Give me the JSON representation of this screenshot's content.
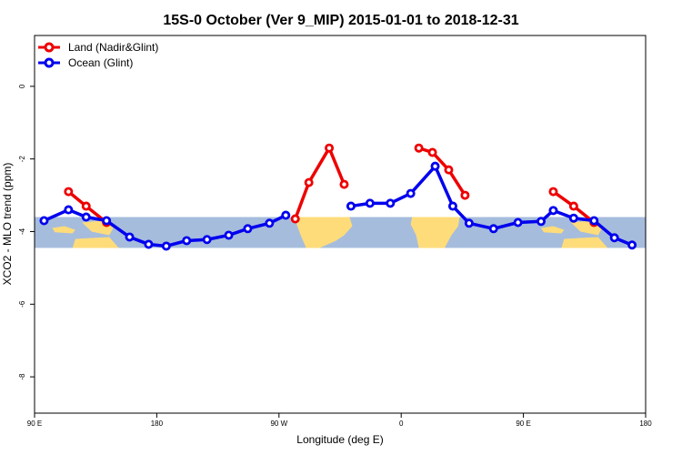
{
  "chart_data": {
    "type": "line",
    "title": "15S-0 October (Ver 9_MIP)   2015-01-01 to 2018-12-31",
    "xlabel": "Longitude (deg E)",
    "ylabel": "XCO2 - MLO trend (ppm)",
    "xlim": [
      90,
      540
    ],
    "ylim": [
      -9,
      1.4
    ],
    "x_ticks": [
      {
        "value": 90,
        "label": "90 E"
      },
      {
        "value": 180,
        "label": "180"
      },
      {
        "value": 270,
        "label": "90 W"
      },
      {
        "value": 360,
        "label": "0"
      },
      {
        "value": 450,
        "label": "90 E"
      },
      {
        "value": 540,
        "label": "180"
      }
    ],
    "y_ticks": [
      {
        "value": 0,
        "label": "0"
      },
      {
        "value": -2,
        "label": "-2"
      },
      {
        "value": -4,
        "label": "-4"
      },
      {
        "value": -6,
        "label": "-6"
      },
      {
        "value": -8,
        "label": "-8"
      }
    ],
    "legend_position": "top-left",
    "grid": false,
    "map_band": {
      "y_range": [
        -4.45,
        -3.6
      ],
      "ocean_color": "#a5bcdc",
      "land_color": "#fedc7a"
    },
    "series": [
      {
        "name": "Land (Nadir&Glint)",
        "color": "#ee0000",
        "segments": [
          [
            [
              115,
              -2.9
            ],
            [
              128,
              -3.3
            ],
            [
              143,
              -3.75
            ]
          ],
          [
            [
              282,
              -3.65
            ],
            [
              292,
              -2.65
            ],
            [
              307,
              -1.7
            ],
            [
              318,
              -2.7
            ]
          ],
          [
            [
              373,
              -1.7
            ],
            [
              383,
              -1.82
            ],
            [
              395,
              -2.3
            ],
            [
              407,
              -3.0
            ]
          ],
          [
            [
              472,
              -2.9
            ],
            [
              487,
              -3.3
            ],
            [
              502,
              -3.75
            ]
          ]
        ]
      },
      {
        "name": "Ocean (Glint)",
        "color": "#0000ee",
        "segments": [
          [
            [
              97,
              -3.7
            ],
            [
              115,
              -3.4
            ],
            [
              128,
              -3.6
            ],
            [
              143,
              -3.7
            ],
            [
              160,
              -4.15
            ],
            [
              174,
              -4.35
            ],
            [
              187,
              -4.4
            ],
            [
              202,
              -4.25
            ],
            [
              217,
              -4.22
            ],
            [
              233,
              -4.1
            ],
            [
              247,
              -3.92
            ],
            [
              263,
              -3.77
            ],
            [
              275,
              -3.55
            ]
          ],
          [
            [
              323,
              -3.3
            ],
            [
              337,
              -3.22
            ],
            [
              352,
              -3.22
            ],
            [
              367,
              -2.95
            ],
            [
              385,
              -2.2
            ],
            [
              398,
              -3.3
            ],
            [
              410,
              -3.77
            ],
            [
              428,
              -3.92
            ],
            [
              446,
              -3.75
            ],
            [
              463,
              -3.72
            ],
            [
              472,
              -3.42
            ],
            [
              487,
              -3.63
            ],
            [
              502,
              -3.7
            ],
            [
              517,
              -4.17
            ],
            [
              530,
              -4.37
            ]
          ]
        ]
      }
    ]
  }
}
